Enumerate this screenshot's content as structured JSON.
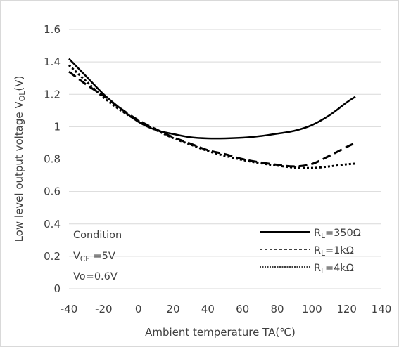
{
  "chart_data": {
    "type": "line",
    "xlabel": "Ambient temperature TA(℃)",
    "ylabel": {
      "prefix": "Low level output voltage V",
      "subscript": "OL",
      "suffix": "(V)"
    },
    "xlim": [
      -40,
      140
    ],
    "ylim": [
      0,
      1.6
    ],
    "xticks": [
      -40,
      -20,
      0,
      20,
      40,
      60,
      80,
      100,
      120,
      140
    ],
    "yticks": [
      0,
      0.2,
      0.4,
      0.6,
      0.8,
      1,
      1.2,
      1.4,
      1.6
    ],
    "xtick_labels": [
      "-40",
      "-20",
      "0",
      "20",
      "40",
      "60",
      "80",
      "100",
      "120",
      "140"
    ],
    "ytick_labels": [
      "0",
      "0.2",
      "0.4",
      "0.6",
      "0.8",
      "1",
      "1.2",
      "1.4",
      "1.6"
    ],
    "grid": "horizontal",
    "legend_placement": "bottom-right",
    "series": [
      {
        "label": {
          "prefix": "R",
          "subscript": "L",
          "suffix": "=350Ω"
        },
        "line_style": "solid",
        "color": "#000000",
        "x": [
          -40,
          -30,
          -20,
          -10,
          0,
          10,
          20,
          30,
          40,
          50,
          60,
          70,
          80,
          90,
          100,
          110,
          120,
          125
        ],
        "y": [
          1.42,
          1.31,
          1.2,
          1.11,
          1.03,
          0.98,
          0.955,
          0.935,
          0.928,
          0.928,
          0.932,
          0.942,
          0.957,
          0.975,
          1.01,
          1.07,
          1.15,
          1.185
        ]
      },
      {
        "label": {
          "prefix": "R",
          "subscript": "L",
          "suffix": "=1kΩ"
        },
        "line_style": "dashed",
        "color": "#000000",
        "x": [
          -40,
          -30,
          -20,
          -10,
          0,
          10,
          20,
          30,
          40,
          50,
          60,
          70,
          80,
          90,
          100,
          110,
          120,
          125
        ],
        "y": [
          1.34,
          1.26,
          1.19,
          1.11,
          1.04,
          0.985,
          0.935,
          0.895,
          0.855,
          0.83,
          0.8,
          0.78,
          0.765,
          0.755,
          0.77,
          0.82,
          0.875,
          0.9
        ]
      },
      {
        "label": {
          "prefix": "R",
          "subscript": "L",
          "suffix": "=4kΩ"
        },
        "line_style": "dotted",
        "color": "#000000",
        "x": [
          -40,
          -30,
          -20,
          -10,
          0,
          10,
          20,
          30,
          40,
          50,
          60,
          70,
          80,
          90,
          100,
          110,
          120,
          125
        ],
        "y": [
          1.38,
          1.28,
          1.18,
          1.1,
          1.035,
          0.98,
          0.93,
          0.89,
          0.85,
          0.82,
          0.795,
          0.775,
          0.76,
          0.748,
          0.745,
          0.755,
          0.768,
          0.772
        ]
      }
    ],
    "annotation": {
      "title": "Condition",
      "line1": {
        "prefix": "V",
        "subscript": "CE",
        "suffix": " =5V"
      },
      "line2": "Vo=0.6V"
    }
  }
}
